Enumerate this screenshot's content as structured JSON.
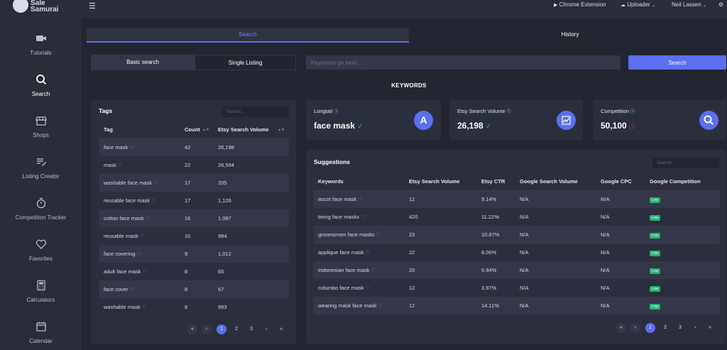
{
  "app": {
    "logo_line1": "Sale",
    "logo_line2": "Samurai"
  },
  "sidebar": {
    "items": [
      {
        "label": "Tutorials",
        "icon": "video-icon",
        "active": false
      },
      {
        "label": "Search",
        "icon": "search-icon",
        "active": true
      },
      {
        "label": "Shops",
        "icon": "store-icon",
        "active": false
      },
      {
        "label": "Listing Creator",
        "icon": "list-edit-icon",
        "active": false
      },
      {
        "label": "Competition Tracker",
        "icon": "stopwatch-icon",
        "active": false
      },
      {
        "label": "Favorites",
        "icon": "heart-icon",
        "active": false
      },
      {
        "label": "Calculators",
        "icon": "calculator-icon",
        "active": false
      },
      {
        "label": "Calendar",
        "icon": "calendar-icon",
        "active": false
      }
    ]
  },
  "topbar": {
    "chrome_extension": "Chrome Extension",
    "uploader": "Uploader",
    "user": "Neil Lassen"
  },
  "tabs": {
    "search": "Search",
    "history": "History"
  },
  "search_mode": {
    "basic": "Basic search",
    "single": "Single Listing"
  },
  "search": {
    "placeholder": "Keywords go here...",
    "button": "Search"
  },
  "keywords_heading": "KEYWORDS",
  "tags": {
    "title": "Tags",
    "search_placeholder": "Search...",
    "columns": [
      "Tag",
      "Count",
      "Etsy Search Volume"
    ],
    "rows": [
      {
        "tag": "face mask",
        "count": "42",
        "volume": "26,198"
      },
      {
        "tag": "mask",
        "count": "22",
        "volume": "26,594"
      },
      {
        "tag": "washable face mask",
        "count": "17",
        "volume": "205"
      },
      {
        "tag": "reusable face mask",
        "count": "17",
        "volume": "1,126"
      },
      {
        "tag": "cotton face mask",
        "count": "16",
        "volume": "1,087"
      },
      {
        "tag": "reusable mask",
        "count": "10",
        "volume": "994"
      },
      {
        "tag": "face covering",
        "count": "9",
        "volume": "1,012"
      },
      {
        "tag": "adult face mask",
        "count": "8",
        "volume": "65"
      },
      {
        "tag": "face cover",
        "count": "8",
        "volume": "67"
      },
      {
        "tag": "washable mask",
        "count": "8",
        "volume": "993"
      }
    ],
    "pager": {
      "first": "«",
      "prev": "‹",
      "pages": [
        "1",
        "2",
        "3"
      ],
      "next": "›",
      "last": "»"
    }
  },
  "stats": [
    {
      "label": "Longtail",
      "value": "face mask",
      "status": "check",
      "icon_letter": "A",
      "icon": "letter-a-icon"
    },
    {
      "label": "Etsy Search Volume",
      "value": "26,198",
      "status": "check",
      "icon": "chart-up-icon"
    },
    {
      "label": "Competition",
      "value": "50,100",
      "status": "alert",
      "icon": "search-icon"
    }
  ],
  "suggestions": {
    "title": "Suggestions",
    "search_placeholder": "Search...",
    "columns": [
      "Keywords",
      "Etsy Search Volume",
      "Etsy CTR",
      "Google Search Volume",
      "Google CPC",
      "Google Competition"
    ],
    "rows": [
      {
        "keyword": "ascot face mask",
        "volume": "12",
        "ctr": "9.14%",
        "gsv": "N/A",
        "cpc": "N/A",
        "comp": "Low"
      },
      {
        "keyword": "tieing face masks",
        "volume": "420",
        "ctr": "11.22%",
        "gsv": "N/A",
        "cpc": "N/A",
        "comp": "Low"
      },
      {
        "keyword": "groomsmen face masks",
        "volume": "23",
        "ctr": "10.87%",
        "gsv": "N/A",
        "cpc": "N/A",
        "comp": "Low"
      },
      {
        "keyword": "applique face mask",
        "volume": "22",
        "ctr": "8.06%",
        "gsv": "N/A",
        "cpc": "N/A",
        "comp": "Low"
      },
      {
        "keyword": "indonesian face mask",
        "volume": "20",
        "ctr": "6.94%",
        "gsv": "N/A",
        "cpc": "N/A",
        "comp": "Low"
      },
      {
        "keyword": "columbo face mask",
        "volume": "12",
        "ctr": "3.97%",
        "gsv": "N/A",
        "cpc": "N/A",
        "comp": "Low"
      },
      {
        "keyword": "wearing mask face mask",
        "volume": "12",
        "ctr": "14.11%",
        "gsv": "N/A",
        "cpc": "N/A",
        "comp": "Low"
      }
    ],
    "pager": {
      "first": "«",
      "prev": "‹",
      "pages": [
        "1",
        "2",
        "3"
      ],
      "next": "›",
      "last": "»"
    }
  },
  "colors": {
    "accent": "#5b6ff0",
    "success": "#22b573",
    "danger": "#e74c3c",
    "background": "#232530",
    "panel": "#2b2e3c"
  }
}
